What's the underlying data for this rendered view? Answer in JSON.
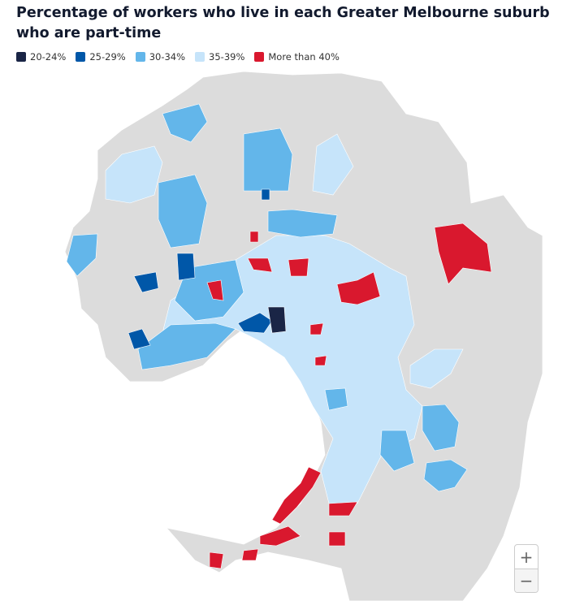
{
  "title": "Percentage of workers who live in each Greater Melbourne suburb who are part-time",
  "legend": [
    {
      "label": "20-24%",
      "color": "#1a2546"
    },
    {
      "label": "25-29%",
      "color": "#0057a8"
    },
    {
      "label": "30-34%",
      "color": "#63b6ea"
    },
    {
      "label": "35-39%",
      "color": "#c6e4fa"
    },
    {
      "label": "More than 40%",
      "color": "#d9182e"
    }
  ],
  "zoom": {
    "in": "+",
    "out": "−"
  }
}
